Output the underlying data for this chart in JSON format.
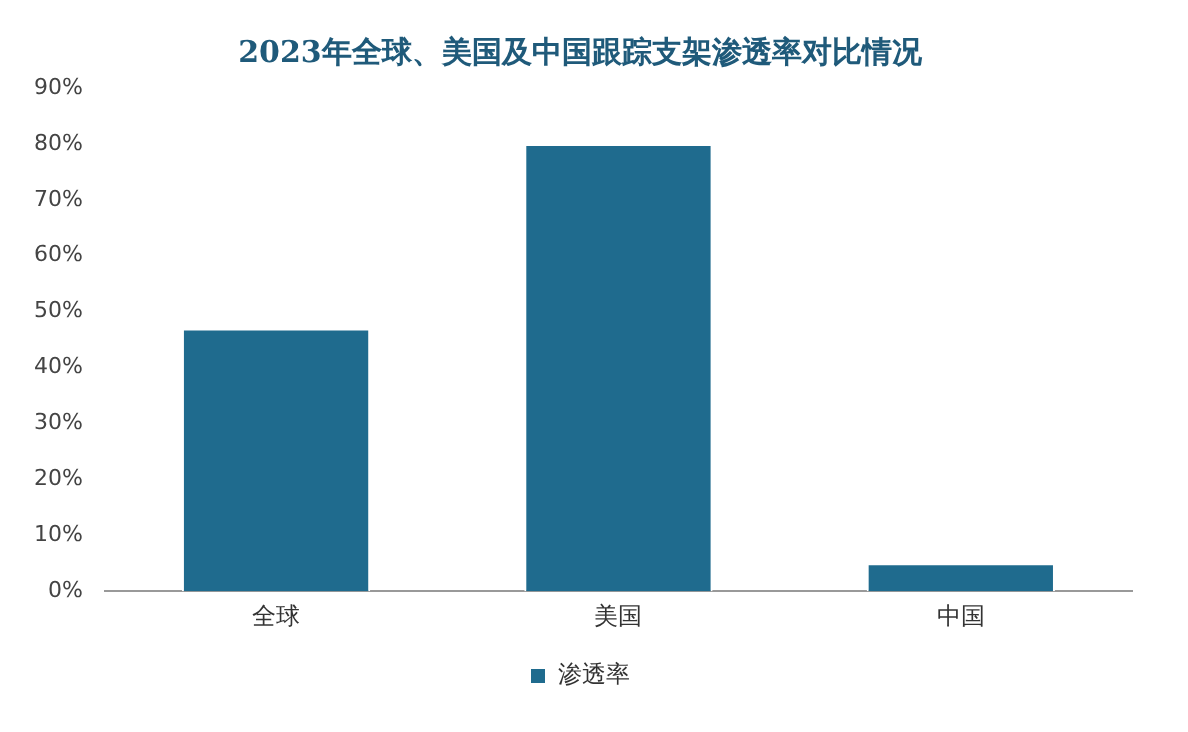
{
  "chart_data": {
    "type": "bar",
    "title": "2023年全球、美国及中国跟踪支架渗透率对比情况",
    "categories": [
      "全球",
      "美国",
      "中国"
    ],
    "series": [
      {
        "name": "渗透率",
        "color": "#1f6b8e",
        "values": [
          47,
          80,
          5
        ]
      }
    ],
    "ylim": [
      0,
      90
    ],
    "yticks": [
      {
        "value": 0,
        "label": "0%"
      },
      {
        "value": 10,
        "label": "10%"
      },
      {
        "value": 20,
        "label": "20%"
      },
      {
        "value": 30,
        "label": "30%"
      },
      {
        "value": 40,
        "label": "40%"
      },
      {
        "value": 50,
        "label": "50%"
      },
      {
        "value": 60,
        "label": "60%"
      },
      {
        "value": 70,
        "label": "70%"
      },
      {
        "value": 80,
        "label": "80%"
      },
      {
        "value": 90,
        "label": "90%"
      }
    ],
    "grid": false,
    "legend": "bottom"
  }
}
